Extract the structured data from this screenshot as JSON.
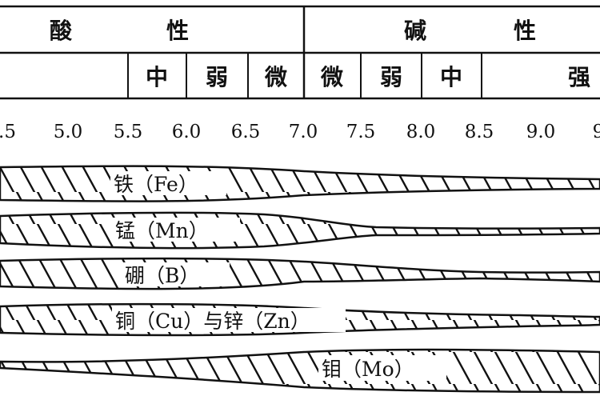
{
  "header": {
    "top": [
      {
        "text": "酸",
        "side": "acid"
      },
      {
        "text": "性",
        "side": "acid"
      },
      {
        "text": "碱",
        "side": "alkaline"
      },
      {
        "text": "性",
        "side": "alkaline"
      }
    ],
    "cells": [
      "中",
      "弱",
      "微",
      "微",
      "弱",
      "中",
      "强"
    ]
  },
  "ph_axis": {
    "ticks": [
      ".5",
      "5.0",
      "5.5",
      "6.0",
      "6.5",
      "7.0",
      "7.5",
      "8.0",
      "8.5",
      "9.0",
      "9"
    ]
  },
  "elements": [
    {
      "label": "铁（Fe）"
    },
    {
      "label": "锰（Mn）"
    },
    {
      "label": "硼（B）"
    },
    {
      "label": "铜（Cu）与锌（Zn）"
    },
    {
      "label": "钼（Mo）"
    }
  ]
}
